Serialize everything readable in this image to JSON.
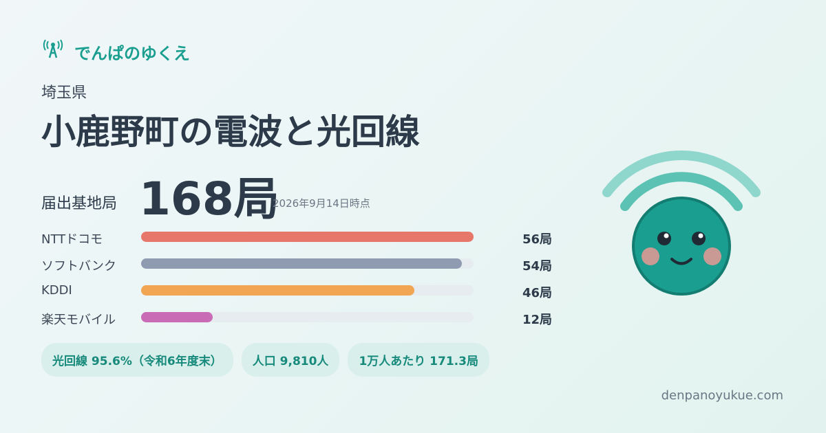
{
  "brand": "でんぱのゆくえ",
  "prefecture": "埼玉県",
  "title": "小鹿野町の電波と光回線",
  "total": {
    "label": "届出基地局",
    "value": "168局",
    "date": "2026年9月14日時点"
  },
  "carriers": [
    {
      "name": "NTTドコモ",
      "value": 56,
      "value_label": "56局",
      "color": "#e8776b"
    },
    {
      "name": "ソフトバンク",
      "value": 54,
      "value_label": "54局",
      "color": "#8e9bb0"
    },
    {
      "name": "KDDI",
      "value": 46,
      "value_label": "46局",
      "color": "#f2a553"
    },
    {
      "name": "楽天モバイル",
      "value": 12,
      "value_label": "12局",
      "color": "#c96bb5"
    }
  ],
  "badges": [
    "光回線 95.6%（令和6年度末）",
    "人口 9,810人",
    "1万人あたり 171.3局"
  ],
  "footer": "denpanoyukue.com"
}
